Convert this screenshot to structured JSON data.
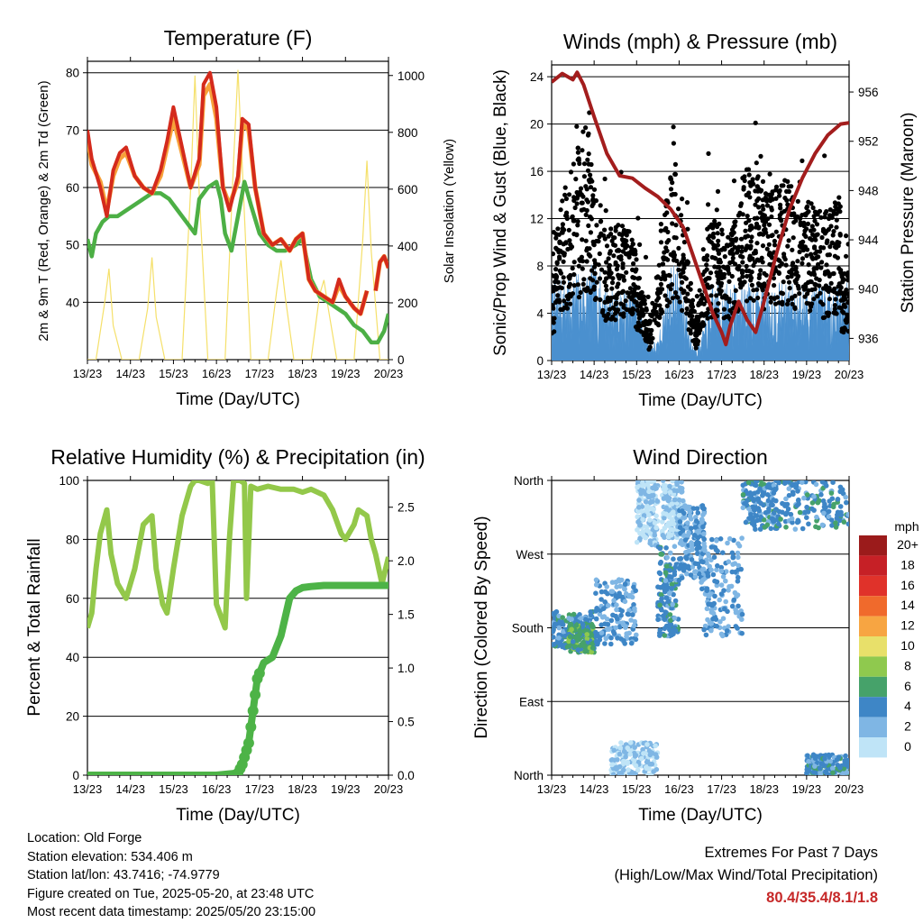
{
  "footer": {
    "location": "Location: Old Forge",
    "elevation": "Station elevation: 534.406 m",
    "latlon": "Station lat/lon: 43.7416; -74.9779",
    "created": "Figure created on Tue, 2025-05-20, at 23:48 UTC",
    "recent": "Most recent data timestamp: 2025/05/20 23:15:00"
  },
  "extremes": {
    "title": "Extremes For Past 7 Days",
    "subtitle": "(High/Low/Max Wind/Total Precipitation)",
    "values": "80.4/35.4/8.1/1.8",
    "value_color": "#c62828"
  },
  "colors": {
    "temp_2m": "#d42a1c",
    "temp_9m": "#f7a13a",
    "dewpoint": "#4caf45",
    "solar": "#f5e06a",
    "wind": "#4a90cf",
    "gust": "#000000",
    "pressure": "#a31d1d",
    "rh": "#93c84a",
    "rain": "#4db347"
  },
  "chart_data": [
    {
      "type": "line",
      "title": "Temperature (F)",
      "xlabel": "Time (Day/UTC)",
      "ylabel": "2m & 9m T (Red, Orange) & 2m Td (Green)",
      "ylabel_right": "Solar Insolation (Yellow)",
      "x_ticks": [
        "13/23",
        "14/23",
        "15/23",
        "16/23",
        "17/23",
        "18/23",
        "19/23",
        "20/23"
      ],
      "xlim": [
        0,
        7
      ],
      "ylim": [
        30,
        82
      ],
      "y_ticks": [
        40,
        50,
        60,
        70,
        80
      ],
      "ylim_right": [
        0,
        1050
      ],
      "y_ticks_right": [
        0,
        200,
        400,
        600,
        800,
        1000
      ],
      "grid": "horizontal",
      "series": [
        {
          "name": "2m T",
          "color_key": "temp_2m",
          "x": [
            0,
            0.1,
            0.3,
            0.45,
            0.6,
            0.75,
            0.9,
            1.1,
            1.3,
            1.5,
            1.7,
            1.85,
            2.0,
            2.2,
            2.4,
            2.6,
            2.7,
            2.85,
            3.0,
            3.15,
            3.3,
            3.5,
            3.6,
            3.75,
            3.9,
            4.1,
            4.3,
            4.5,
            4.7,
            4.85,
            5.0,
            5.15,
            5.3,
            5.5,
            5.7,
            5.85,
            6.0,
            6.2,
            6.35,
            6.5,
            6.55,
            6.7,
            6.8,
            6.9,
            7.0
          ],
          "values": [
            70,
            65,
            60,
            55,
            63,
            66,
            67,
            62,
            60,
            59,
            63,
            68,
            74,
            67,
            60,
            65,
            78,
            80,
            74,
            60,
            56,
            62,
            72,
            71,
            60,
            52,
            50,
            51,
            49,
            51,
            52,
            44,
            42,
            41,
            40,
            44,
            41,
            39,
            38,
            42,
            null,
            42,
            47,
            48,
            46
          ]
        },
        {
          "name": "9m T",
          "color_key": "temp_9m",
          "x": [
            0,
            0.1,
            0.3,
            0.45,
            0.6,
            0.75,
            0.9,
            1.1,
            1.3,
            1.5,
            1.7,
            1.85,
            2.0,
            2.2,
            2.4,
            2.6,
            2.7,
            2.85,
            3.0,
            3.15,
            3.3,
            3.5,
            3.6,
            3.75,
            3.9,
            4.1,
            4.3,
            4.5,
            4.7,
            4.85,
            5.0,
            5.15,
            5.3,
            5.5,
            5.7,
            5.85,
            6.0,
            6.2,
            6.35,
            6.5,
            6.55,
            6.7,
            6.8,
            6.9,
            7.0
          ],
          "values": [
            69,
            64,
            61,
            56,
            62,
            65,
            66,
            62,
            60,
            59,
            62,
            67,
            72,
            66,
            60,
            64,
            76,
            78,
            72,
            60,
            57,
            61,
            71,
            70,
            60,
            52,
            50,
            51,
            49,
            51,
            52,
            44,
            42,
            41,
            40,
            43,
            41,
            39,
            38,
            42,
            null,
            42,
            47,
            48,
            46
          ]
        },
        {
          "name": "2m Td",
          "color_key": "dewpoint",
          "x": [
            0,
            0.1,
            0.2,
            0.35,
            0.5,
            0.7,
            0.9,
            1.1,
            1.3,
            1.5,
            1.7,
            1.9,
            2.1,
            2.3,
            2.5,
            2.6,
            2.8,
            3.0,
            3.1,
            3.2,
            3.35,
            3.5,
            3.65,
            3.8,
            4.0,
            4.2,
            4.4,
            4.6,
            4.85,
            5.0,
            5.2,
            5.4,
            5.6,
            5.8,
            6.0,
            6.2,
            6.4,
            6.6,
            6.75,
            6.9,
            7.0
          ],
          "values": [
            51,
            48,
            52,
            54,
            55,
            55,
            56,
            57,
            58,
            59,
            59,
            58,
            56,
            54,
            52,
            58,
            60,
            61,
            58,
            52,
            49,
            55,
            61,
            57,
            52,
            50,
            49,
            49,
            50,
            51,
            44,
            41,
            40,
            39,
            38,
            36,
            35,
            33,
            33,
            35,
            38
          ]
        },
        {
          "name": "Solar",
          "color_key": "solar",
          "axis": "right",
          "x": [
            0,
            0.2,
            0.4,
            0.5,
            0.6,
            0.8,
            1.0,
            1.2,
            1.4,
            1.5,
            1.6,
            1.8,
            2.0,
            2.2,
            2.4,
            2.5,
            2.6,
            2.8,
            3.0,
            3.2,
            3.4,
            3.5,
            3.6,
            3.8,
            4.0,
            4.2,
            4.4,
            4.5,
            4.6,
            4.8,
            5.0,
            5.2,
            5.4,
            5.5,
            5.6,
            5.8,
            6.0,
            6.2,
            6.4,
            6.5,
            6.6,
            6.8,
            7.0
          ],
          "values": [
            0,
            0,
            200,
            320,
            120,
            0,
            0,
            0,
            180,
            360,
            150,
            0,
            0,
            0,
            600,
            1000,
            580,
            0,
            0,
            0,
            700,
            1020,
            680,
            0,
            0,
            0,
            240,
            350,
            220,
            0,
            0,
            0,
            230,
            280,
            180,
            0,
            0,
            0,
            420,
            700,
            380,
            0,
            0
          ]
        }
      ]
    },
    {
      "type": "scatter",
      "title": "Winds (mph) & Pressure (mb)",
      "xlabel": "Time (Day/UTC)",
      "ylabel": "Sonic/Prop Wind & Gust (Blue, Black)",
      "ylabel_right": "Station Pressure (Maroon)",
      "x_ticks": [
        "13/23",
        "14/23",
        "15/23",
        "16/23",
        "17/23",
        "18/23",
        "19/23",
        "20/23"
      ],
      "xlim": [
        0,
        7
      ],
      "ylim": [
        0,
        25
      ],
      "y_ticks": [
        0,
        4,
        8,
        12,
        16,
        20,
        24
      ],
      "ylim_right": [
        934.2,
        958.2
      ],
      "y_ticks_right": [
        936,
        940,
        944,
        948,
        952,
        956
      ],
      "grid": "horizontal",
      "series": [
        {
          "name": "Wind",
          "color_key": "wind",
          "x": [
            0,
            0.5,
            1.0,
            1.5,
            2.0,
            2.3,
            2.5,
            2.8,
            3.0,
            3.3,
            3.5,
            3.8,
            4.0,
            4.3,
            4.5,
            5.0,
            5.5,
            6.0,
            6.5,
            7.0
          ],
          "values": [
            4,
            4.5,
            5,
            3.5,
            4,
            1,
            1,
            5,
            5,
            1,
            1,
            4,
            4,
            4,
            4,
            4,
            4,
            4,
            4,
            4
          ]
        },
        {
          "name": "Gust",
          "color_key": "gust",
          "x": [
            0.1,
            0.4,
            0.8,
            1.3,
            1.8,
            2.3,
            2.6,
            2.9,
            3.4,
            3.7,
            4.2,
            4.6,
            5.1,
            5.5,
            5.9,
            6.4,
            6.8
          ],
          "values": [
            8,
            10,
            13,
            7,
            8,
            2,
            8,
            11,
            2,
            8,
            7,
            11,
            9,
            10,
            9,
            8,
            9
          ]
        },
        {
          "name": "Pressure",
          "color_key": "pressure",
          "axis": "right",
          "x": [
            0,
            0.25,
            0.5,
            0.6,
            0.75,
            1.0,
            1.3,
            1.6,
            1.9,
            2.2,
            2.5,
            2.8,
            3.1,
            3.3,
            3.6,
            3.8,
            4.0,
            4.1,
            4.2,
            4.4,
            4.6,
            4.8,
            5.0,
            5.3,
            5.6,
            5.9,
            6.2,
            6.5,
            6.8,
            7.0
          ],
          "values": [
            956.8,
            957.5,
            957.0,
            957.6,
            956.6,
            954.0,
            951.0,
            949.2,
            949.0,
            948.2,
            947.5,
            946.5,
            945.0,
            943.0,
            940.0,
            938.0,
            936.5,
            935.5,
            937.0,
            939.0,
            937.5,
            936.5,
            939.0,
            943.0,
            946.5,
            949.0,
            951.0,
            952.5,
            953.4,
            953.5
          ]
        }
      ]
    },
    {
      "type": "line",
      "title": "Relative Humidity (%) & Precipitation (in)",
      "xlabel": "Time (Day/UTC)",
      "ylabel": "Percent & Total Rainfall",
      "x_ticks": [
        "13/23",
        "14/23",
        "15/23",
        "16/23",
        "17/23",
        "18/23",
        "19/23",
        "20/23"
      ],
      "xlim": [
        0,
        7
      ],
      "ylim": [
        0,
        100
      ],
      "y_ticks": [
        0,
        20,
        40,
        60,
        80,
        100
      ],
      "ylim_right": [
        0,
        2.75
      ],
      "y_ticks_right": [
        "0.0",
        "0.5",
        "1.0",
        "1.5",
        "2.0",
        "2.5"
      ],
      "grid": "horizontal",
      "series": [
        {
          "name": "RH",
          "color_key": "rh",
          "x": [
            0,
            0.1,
            0.2,
            0.3,
            0.45,
            0.55,
            0.7,
            0.9,
            1.1,
            1.3,
            1.5,
            1.6,
            1.75,
            1.85,
            2.0,
            2.2,
            2.4,
            2.5,
            2.6,
            2.8,
            2.9,
            3.0,
            3.2,
            3.3,
            3.4,
            3.55,
            3.65,
            3.7,
            3.8,
            3.95,
            4.2,
            4.5,
            4.8,
            5.0,
            5.2,
            5.5,
            5.7,
            5.9,
            6.0,
            6.2,
            6.3,
            6.5,
            6.6,
            6.7,
            6.85,
            7.0
          ],
          "values": [
            50,
            55,
            70,
            82,
            90,
            75,
            65,
            60,
            70,
            85,
            88,
            70,
            58,
            55,
            70,
            88,
            98,
            100,
            100,
            99,
            100,
            58,
            50,
            80,
            100,
            100,
            99,
            60,
            98,
            97,
            98,
            97,
            97,
            96,
            97,
            95,
            90,
            82,
            80,
            85,
            90,
            88,
            80,
            75,
            65,
            74
          ]
        },
        {
          "name": "Rain",
          "color_key": "rain",
          "axis": "right",
          "x": [
            0,
            1.0,
            2.0,
            3.0,
            3.5,
            3.6,
            3.75,
            3.85,
            3.95,
            4.1,
            4.3,
            4.5,
            4.7,
            4.85,
            5.0,
            5.2,
            5.5,
            6.0,
            7.0
          ],
          "values": [
            0,
            0,
            0,
            0,
            0.02,
            0.1,
            0.3,
            0.6,
            0.9,
            1.05,
            1.1,
            1.3,
            1.65,
            1.72,
            1.75,
            1.76,
            1.77,
            1.77,
            1.77
          ]
        }
      ]
    },
    {
      "type": "scatter",
      "title": "Wind Direction",
      "xlabel": "Time (Day/UTC)",
      "ylabel": "Direction (Colored By Speed)",
      "x_ticks": [
        "13/23",
        "14/23",
        "15/23",
        "16/23",
        "17/23",
        "18/23",
        "19/23",
        "20/23"
      ],
      "xlim": [
        0,
        7
      ],
      "ylim": [
        0,
        360
      ],
      "y_ticks": [
        "North",
        "East",
        "South",
        "West",
        "North"
      ],
      "y_tick_values": [
        0,
        90,
        180,
        270,
        360
      ],
      "grid": "horizontal",
      "colorbar": {
        "unit": "mph",
        "labels": [
          "20+",
          "18",
          "16",
          "14",
          "12",
          "10",
          "8",
          "6",
          "4",
          "2",
          "0"
        ],
        "colors": [
          "#9b1b1b",
          "#c62026",
          "#e0322a",
          "#f06a2c",
          "#f7a542",
          "#e8e06a",
          "#8fc94e",
          "#46a26a",
          "#3e86c6",
          "#7fb6e4",
          "#bfe4f7"
        ]
      },
      "clusters": [
        {
          "x": [
            0,
            1
          ],
          "dir": [
            155,
            200
          ],
          "speed": 4
        },
        {
          "x": [
            0.4,
            1
          ],
          "dir": [
            150,
            185
          ],
          "speed": 6
        },
        {
          "x": [
            1,
            2
          ],
          "dir": [
            160,
            240
          ],
          "speed": 3
        },
        {
          "x": [
            1.4,
            2.5
          ],
          "dir": [
            0,
            40
          ],
          "speed": 1
        },
        {
          "x": [
            2,
            2.5
          ],
          "dir": [
            280,
            360
          ],
          "speed": 1
        },
        {
          "x": [
            2.5,
            3
          ],
          "dir": [
            170,
            280
          ],
          "speed": 4
        },
        {
          "x": [
            2.6,
            3.1
          ],
          "dir": [
            290,
            360
          ],
          "speed": 1
        },
        {
          "x": [
            3,
            3.6
          ],
          "dir": [
            240,
            330
          ],
          "speed": 3
        },
        {
          "x": [
            3.5,
            4.5
          ],
          "dir": [
            170,
            290
          ],
          "speed": 3
        },
        {
          "x": [
            4.5,
            5.3
          ],
          "dir": [
            300,
            360
          ],
          "speed": 4
        },
        {
          "x": [
            5.3,
            7
          ],
          "dir": [
            300,
            360
          ],
          "speed": 4
        },
        {
          "x": [
            6,
            7
          ],
          "dir": [
            0,
            25
          ],
          "speed": 4
        }
      ]
    }
  ]
}
